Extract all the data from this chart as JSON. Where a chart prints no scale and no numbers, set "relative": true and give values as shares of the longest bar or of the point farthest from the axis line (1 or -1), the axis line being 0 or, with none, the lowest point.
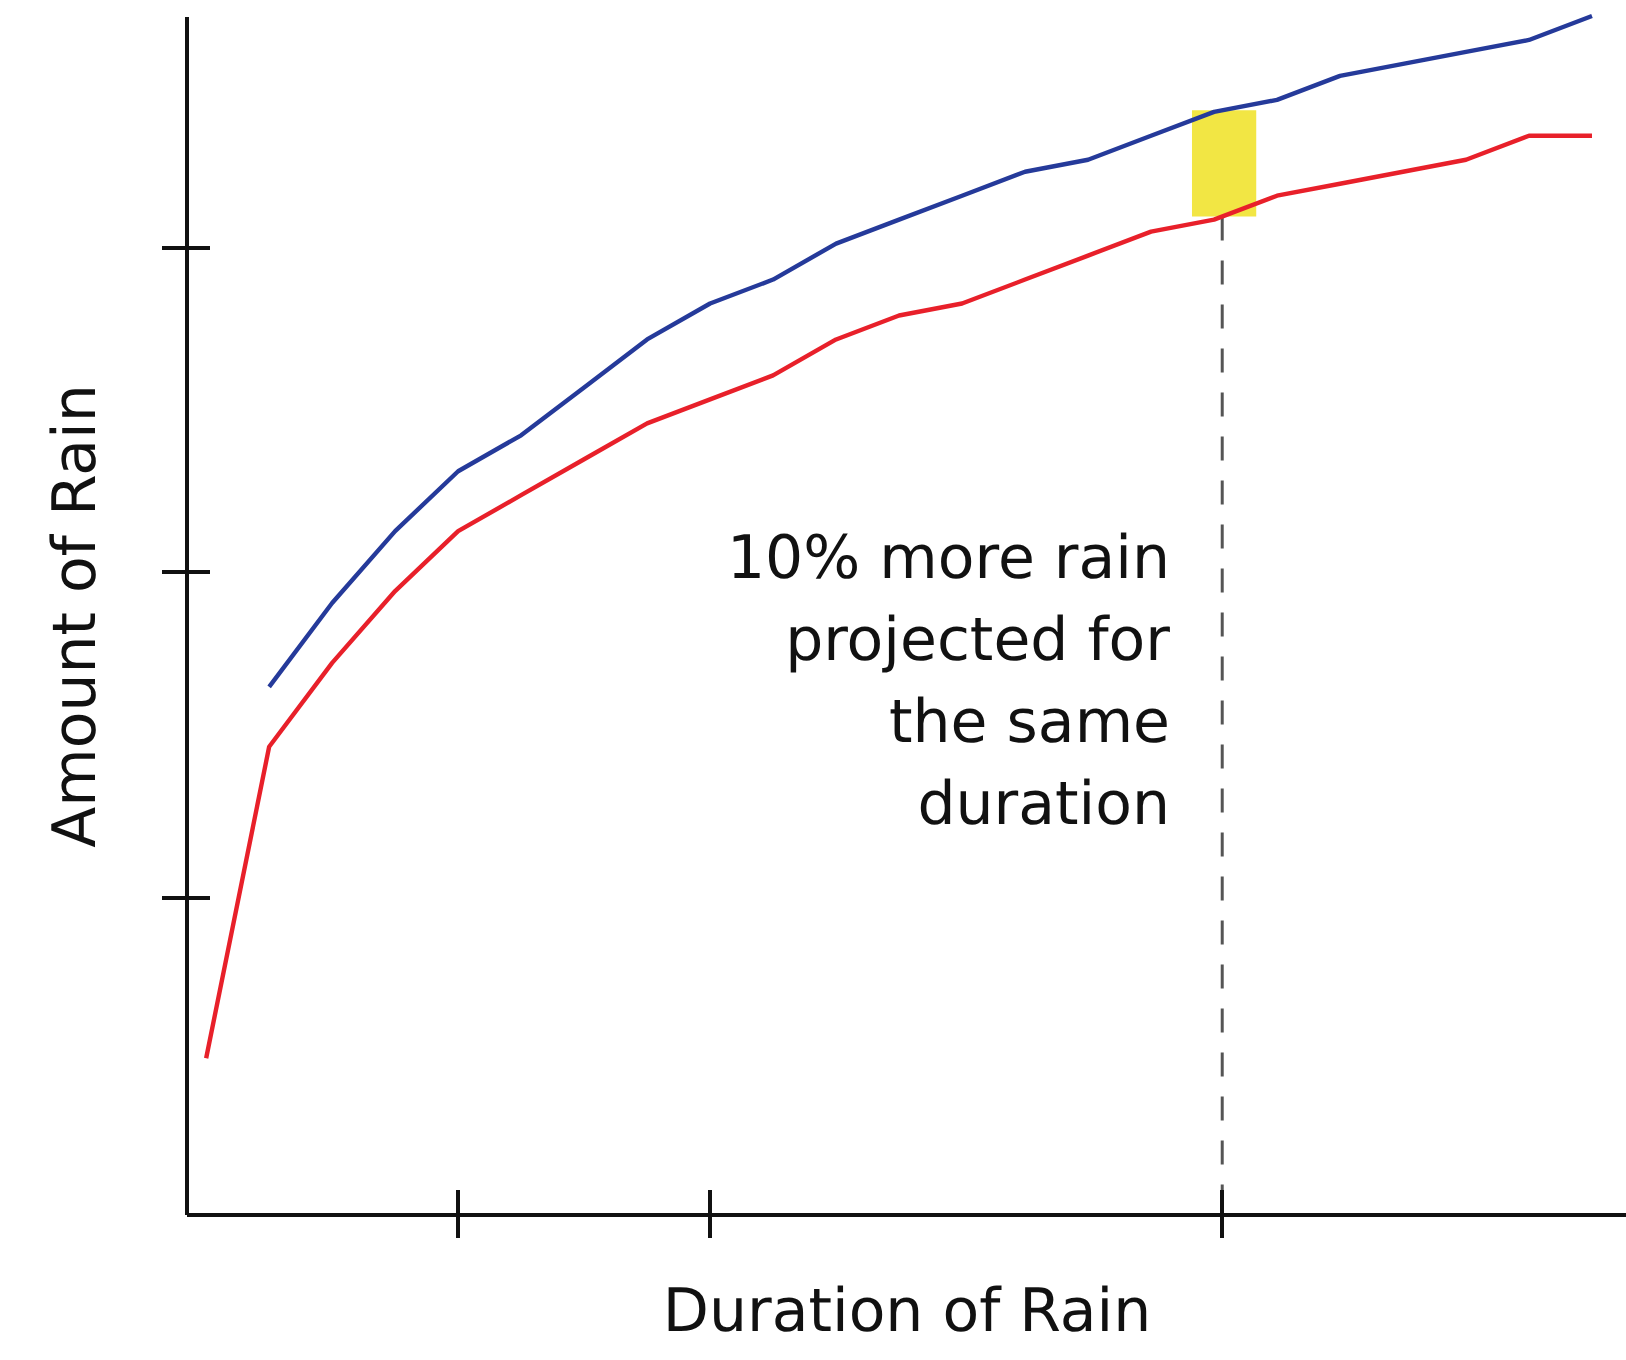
{
  "chart_data": {
    "type": "line",
    "relative": true,
    "xlabel": "Duration of Rain",
    "ylabel": "Amount of Rain",
    "categories": [
      null,
      null,
      null,
      null,
      null,
      null,
      null,
      null,
      null,
      null,
      null,
      null,
      null,
      null,
      null,
      null,
      null,
      null,
      null,
      null,
      null,
      null,
      null
    ],
    "tick_labels": false,
    "marker": "none",
    "line_style": "solid",
    "series": [
      {
        "color": "#e8202a",
        "values": [
          0.13,
          0.39,
          0.46,
          0.52,
          0.57,
          0.6,
          0.63,
          0.66,
          0.68,
          0.7,
          0.73,
          0.75,
          0.76,
          0.78,
          0.8,
          0.82,
          0.83,
          0.85,
          0.86,
          0.87,
          0.88,
          0.9,
          0.9
        ]
      },
      {
        "color": "#253a9a",
        "values": [
          null,
          0.44,
          0.51,
          0.57,
          0.62,
          0.65,
          0.69,
          0.73,
          0.76,
          0.78,
          0.81,
          0.83,
          0.85,
          0.87,
          0.88,
          0.9,
          0.92,
          0.93,
          0.95,
          0.96,
          0.97,
          0.98,
          1.0
        ]
      }
    ],
    "annotations": [
      "10% more rain\nprojected for\nthe same\nduration"
    ]
  }
}
